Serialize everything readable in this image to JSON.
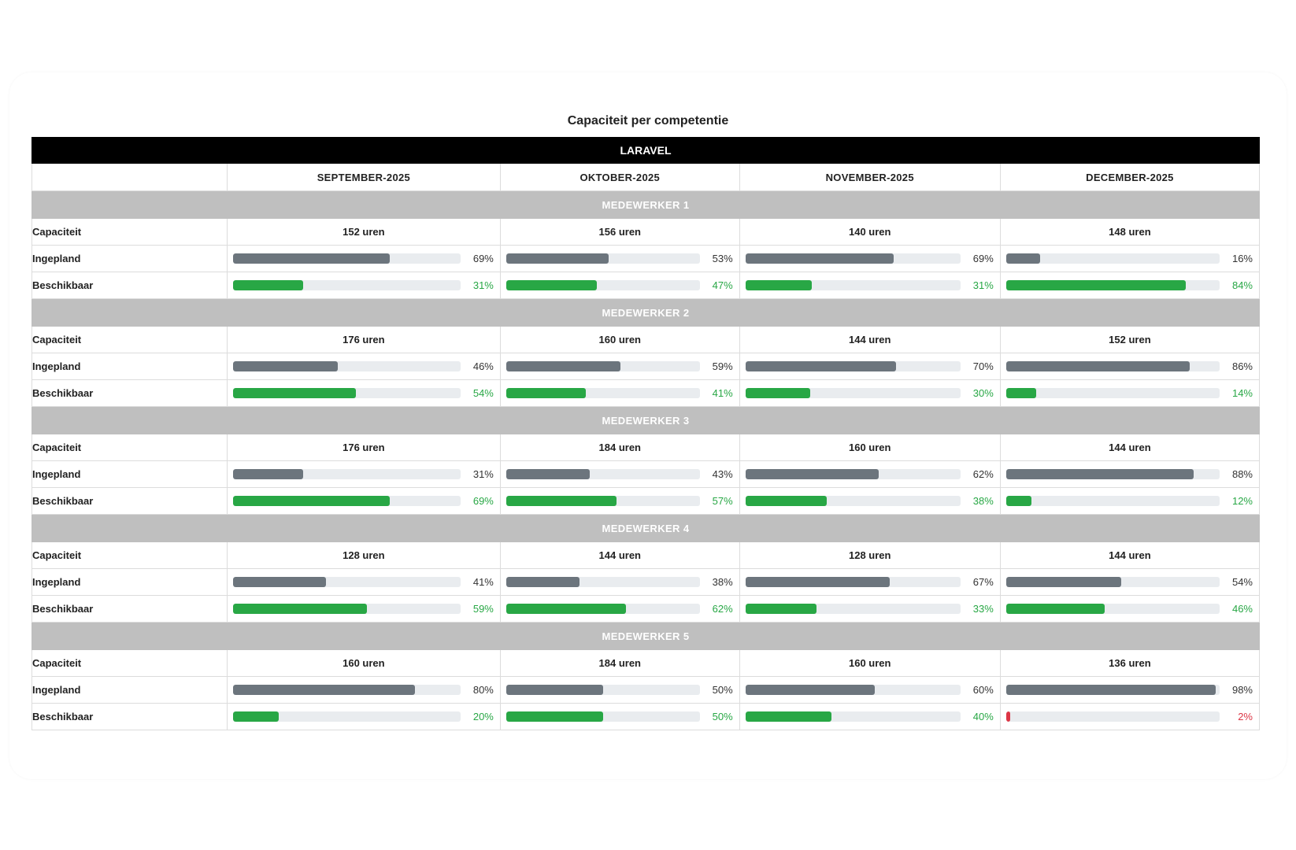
{
  "title": "Capaciteit per competentie",
  "competence": "LARAVEL",
  "months": [
    "SEPTEMBER-2025",
    "OKTOBER-2025",
    "NOVEMBER-2025",
    "DECEMBER-2025"
  ],
  "labels": {
    "capacity": "Capaciteit",
    "planned": "Ingepland",
    "available": "Beschikbaar"
  },
  "colors": {
    "planned": "#6c757d",
    "available": "#28a745",
    "low": "#dc3545",
    "track": "#e9ecef",
    "employee_header": "#bfbfbf"
  },
  "employees": [
    {
      "name": "MEDEWERKER 1",
      "months": [
        {
          "capacity": "152 uren",
          "planned": 69,
          "planned_label": "69%",
          "available": 31,
          "available_label": "31%"
        },
        {
          "capacity": "156 uren",
          "planned": 53,
          "planned_label": "53%",
          "available": 47,
          "available_label": "47%"
        },
        {
          "capacity": "140 uren",
          "planned": 69,
          "planned_label": "69%",
          "available": 31,
          "available_label": "31%"
        },
        {
          "capacity": "148 uren",
          "planned": 16,
          "planned_label": "16%",
          "available": 84,
          "available_label": "84%"
        }
      ]
    },
    {
      "name": "MEDEWERKER 2",
      "months": [
        {
          "capacity": "176 uren",
          "planned": 46,
          "planned_label": "46%",
          "available": 54,
          "available_label": "54%"
        },
        {
          "capacity": "160 uren",
          "planned": 59,
          "planned_label": "59%",
          "available": 41,
          "available_label": "41%"
        },
        {
          "capacity": "144 uren",
          "planned": 70,
          "planned_label": "70%",
          "available": 30,
          "available_label": "30%"
        },
        {
          "capacity": "152 uren",
          "planned": 86,
          "planned_label": "86%",
          "available": 14,
          "available_label": "14%"
        }
      ]
    },
    {
      "name": "MEDEWERKER 3",
      "months": [
        {
          "capacity": "176 uren",
          "planned": 31,
          "planned_label": "31%",
          "available": 69,
          "available_label": "69%"
        },
        {
          "capacity": "184 uren",
          "planned": 43,
          "planned_label": "43%",
          "available": 57,
          "available_label": "57%"
        },
        {
          "capacity": "160 uren",
          "planned": 62,
          "planned_label": "62%",
          "available": 38,
          "available_label": "38%"
        },
        {
          "capacity": "144 uren",
          "planned": 88,
          "planned_label": "88%",
          "available": 12,
          "available_label": "12%"
        }
      ]
    },
    {
      "name": "MEDEWERKER 4",
      "months": [
        {
          "capacity": "128 uren",
          "planned": 41,
          "planned_label": "41%",
          "available": 59,
          "available_label": "59%"
        },
        {
          "capacity": "144 uren",
          "planned": 38,
          "planned_label": "38%",
          "available": 62,
          "available_label": "62%"
        },
        {
          "capacity": "128 uren",
          "planned": 67,
          "planned_label": "67%",
          "available": 33,
          "available_label": "33%"
        },
        {
          "capacity": "144 uren",
          "planned": 54,
          "planned_label": "54%",
          "available": 46,
          "available_label": "46%"
        }
      ]
    },
    {
      "name": "MEDEWERKER 5",
      "months": [
        {
          "capacity": "160 uren",
          "planned": 80,
          "planned_label": "80%",
          "available": 20,
          "available_label": "20%"
        },
        {
          "capacity": "184 uren",
          "planned": 50,
          "planned_label": "50%",
          "available": 50,
          "available_label": "50%"
        },
        {
          "capacity": "160 uren",
          "planned": 60,
          "planned_label": "60%",
          "available": 40,
          "available_label": "40%"
        },
        {
          "capacity": "136 uren",
          "planned": 98,
          "planned_label": "98%",
          "available": 2,
          "available_label": "2%"
        }
      ]
    }
  ]
}
